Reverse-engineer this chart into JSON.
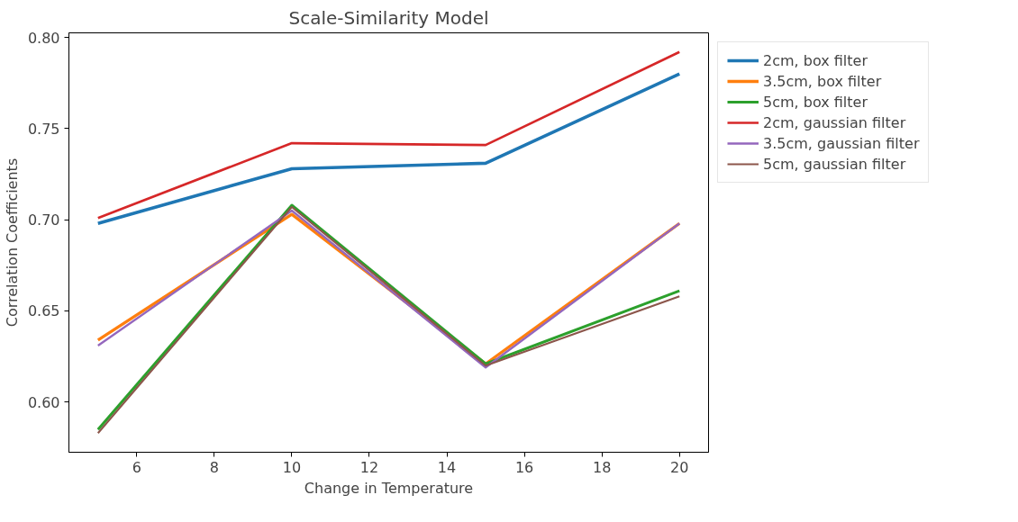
{
  "chart_data": {
    "type": "line",
    "title": "Scale-Similarity Model",
    "xlabel": "Change in Temperature",
    "ylabel": "Correlation Coefficients",
    "x": [
      5,
      10,
      15,
      20
    ],
    "series": [
      {
        "name": "2cm, box filter",
        "color": "#1f77b4",
        "values": [
          0.698,
          0.728,
          0.731,
          0.78
        ]
      },
      {
        "name": "3.5cm, box filter",
        "color": "#ff7f0e",
        "values": [
          0.634,
          0.703,
          0.621,
          0.698
        ]
      },
      {
        "name": "5cm, box filter",
        "color": "#2ca02c",
        "values": [
          0.585,
          0.708,
          0.621,
          0.661
        ]
      },
      {
        "name": "2cm, gaussian filter",
        "color": "#d62728",
        "values": [
          0.701,
          0.742,
          0.741,
          0.792
        ]
      },
      {
        "name": "3.5cm, gaussian filter",
        "color": "#9467bd",
        "values": [
          0.631,
          0.705,
          0.619,
          0.698
        ]
      },
      {
        "name": "5cm, gaussian filter",
        "color": "#8c564b",
        "values": [
          0.583,
          0.707,
          0.62,
          0.658
        ]
      }
    ],
    "xlim": [
      4.25,
      20.75
    ],
    "ylim": [
      0.5725,
      0.8025
    ],
    "xticks": [
      6,
      8,
      10,
      12,
      14,
      16,
      18,
      20
    ],
    "yticks": [
      {
        "value": 0.6,
        "label": "0.60"
      },
      {
        "value": 0.65,
        "label": "0.65"
      },
      {
        "value": 0.7,
        "label": "0.70"
      },
      {
        "value": 0.75,
        "label": "0.75"
      },
      {
        "value": 0.8,
        "label": "0.80"
      }
    ],
    "grid": false,
    "legend": "right",
    "marker": "none",
    "line_style": "solid"
  }
}
